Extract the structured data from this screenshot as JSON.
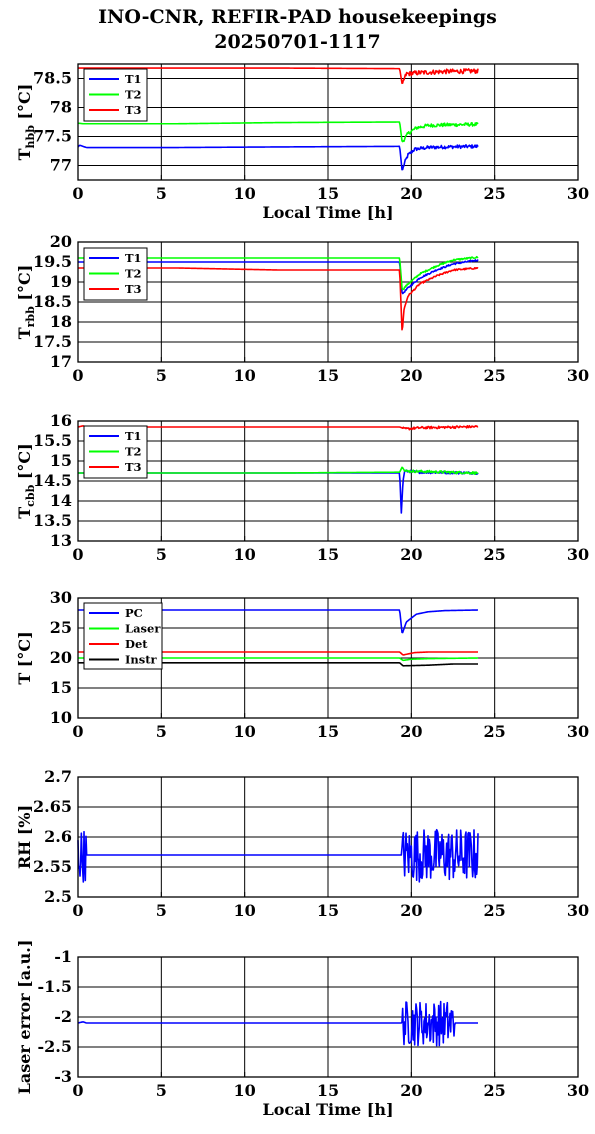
{
  "title_line1": "INO-CNR, REFIR-PAD housekeepings",
  "title_line2": "20250701-1117",
  "colors": {
    "blue": "#0000ff",
    "green": "#00ff00",
    "red": "#ff0000",
    "black": "#000000"
  },
  "chart_data": [
    {
      "type": "line",
      "ylabel_main": "T",
      "ylabel_sub": "hbb",
      "ylabel_unit": " [°C]",
      "xlabel": "Local Time [h]",
      "xlim": [
        0,
        30
      ],
      "xticks": [
        0,
        5,
        10,
        15,
        20,
        25,
        30
      ],
      "ylim": [
        76.75,
        78.75
      ],
      "yticks": [
        77,
        77.5,
        78,
        78.5
      ],
      "grid": true,
      "legend": "top-left",
      "series": [
        {
          "name": "T1",
          "color": "#0000ff",
          "points": [
            [
              0,
              77.32
            ],
            [
              0.1,
              77.35
            ],
            [
              0.3,
              77.33
            ],
            [
              0.5,
              77.31
            ],
            [
              6,
              77.31
            ],
            [
              12,
              77.32
            ],
            [
              19.3,
              77.33
            ],
            [
              19.45,
              76.9
            ],
            [
              19.6,
              77.05
            ],
            [
              19.8,
              77.18
            ],
            [
              20.2,
              77.28
            ],
            [
              21,
              77.31
            ],
            [
              22,
              77.32
            ],
            [
              24,
              77.33
            ]
          ],
          "noise": {
            "from": 19.5,
            "to": 24,
            "amp": 0.03
          }
        },
        {
          "name": "T2",
          "color": "#00ff00",
          "points": [
            [
              0,
              77.73
            ],
            [
              0.3,
              77.72
            ],
            [
              6,
              77.72
            ],
            [
              12,
              77.74
            ],
            [
              19.3,
              77.75
            ],
            [
              19.45,
              77.4
            ],
            [
              19.8,
              77.55
            ],
            [
              20.3,
              77.65
            ],
            [
              21,
              77.69
            ],
            [
              22,
              77.7
            ],
            [
              24,
              77.71
            ]
          ],
          "noise": {
            "from": 19.5,
            "to": 24,
            "amp": 0.03
          }
        },
        {
          "name": "T3",
          "color": "#ff0000",
          "points": [
            [
              0,
              78.68
            ],
            [
              6,
              78.68
            ],
            [
              12,
              78.68
            ],
            [
              19.3,
              78.67
            ],
            [
              19.45,
              78.4
            ],
            [
              19.7,
              78.58
            ],
            [
              20.5,
              78.6
            ],
            [
              22,
              78.62
            ],
            [
              24,
              78.63
            ]
          ],
          "noise": {
            "from": 19.5,
            "to": 24,
            "amp": 0.04
          }
        }
      ]
    },
    {
      "type": "line",
      "ylabel_main": "T",
      "ylabel_sub": "rbb",
      "ylabel_unit": " [°C]",
      "xlabel": "",
      "xlim": [
        0,
        30
      ],
      "xticks": [
        0,
        5,
        10,
        15,
        20,
        25,
        30
      ],
      "ylim": [
        17,
        20
      ],
      "yticks": [
        17,
        17.5,
        18,
        18.5,
        19,
        19.5,
        20
      ],
      "grid": true,
      "legend": "top-left",
      "series": [
        {
          "name": "T1",
          "color": "#0000ff",
          "points": [
            [
              0,
              19.5
            ],
            [
              6,
              19.5
            ],
            [
              12,
              19.5
            ],
            [
              19.3,
              19.5
            ],
            [
              19.45,
              18.7
            ],
            [
              19.8,
              18.85
            ],
            [
              20.5,
              19.1
            ],
            [
              21.5,
              19.3
            ],
            [
              22.5,
              19.45
            ],
            [
              24,
              19.55
            ]
          ],
          "noise": {
            "from": 19.5,
            "to": 24,
            "amp": 0.02
          }
        },
        {
          "name": "T2",
          "color": "#00ff00",
          "points": [
            [
              0,
              19.6
            ],
            [
              6,
              19.6
            ],
            [
              12,
              19.6
            ],
            [
              19.3,
              19.6
            ],
            [
              19.45,
              18.8
            ],
            [
              19.8,
              18.95
            ],
            [
              20.5,
              19.2
            ],
            [
              21.5,
              19.4
            ],
            [
              22.5,
              19.55
            ],
            [
              24,
              19.62
            ]
          ],
          "noise": {
            "from": 19.5,
            "to": 24,
            "amp": 0.02
          }
        },
        {
          "name": "T3",
          "color": "#ff0000",
          "points": [
            [
              0,
              19.35
            ],
            [
              6,
              19.35
            ],
            [
              12,
              19.3
            ],
            [
              19.3,
              19.3
            ],
            [
              19.45,
              17.7
            ],
            [
              19.55,
              18.3
            ],
            [
              19.8,
              18.65
            ],
            [
              20.5,
              18.95
            ],
            [
              21.5,
              19.15
            ],
            [
              22.5,
              19.3
            ],
            [
              24,
              19.35
            ]
          ],
          "noise": {
            "from": 19.5,
            "to": 24,
            "amp": 0.02
          }
        }
      ]
    },
    {
      "type": "line",
      "ylabel_main": "T",
      "ylabel_sub": "cbb",
      "ylabel_unit": " [°C]",
      "xlabel": "",
      "xlim": [
        0,
        30
      ],
      "xticks": [
        0,
        5,
        10,
        15,
        20,
        25,
        30
      ],
      "ylim": [
        13,
        16
      ],
      "yticks": [
        13,
        13.5,
        14,
        14.5,
        15,
        15.5,
        16
      ],
      "grid": true,
      "legend": "top-left",
      "series": [
        {
          "name": "T1",
          "color": "#0000ff",
          "points": [
            [
              0,
              14.7
            ],
            [
              6,
              14.7
            ],
            [
              12,
              14.7
            ],
            [
              19.3,
              14.7
            ],
            [
              19.4,
              13.7
            ],
            [
              19.5,
              14.5
            ],
            [
              19.6,
              14.75
            ],
            [
              20.5,
              14.72
            ],
            [
              24,
              14.7
            ]
          ],
          "noise": {
            "from": 19.6,
            "to": 24,
            "amp": 0.03
          }
        },
        {
          "name": "T2",
          "color": "#00ff00",
          "points": [
            [
              0,
              14.7
            ],
            [
              6,
              14.7
            ],
            [
              12,
              14.7
            ],
            [
              19.3,
              14.72
            ],
            [
              19.45,
              14.85
            ],
            [
              19.6,
              14.75
            ],
            [
              24,
              14.7
            ]
          ],
          "noise": {
            "from": 19.6,
            "to": 24,
            "amp": 0.03
          }
        },
        {
          "name": "T3",
          "color": "#ff0000",
          "points": [
            [
              0,
              15.85
            ],
            [
              0.3,
              15.88
            ],
            [
              0.5,
              15.85
            ],
            [
              12,
              15.85
            ],
            [
              19.3,
              15.85
            ],
            [
              19.6,
              15.8
            ],
            [
              20.5,
              15.83
            ],
            [
              24,
              15.86
            ]
          ],
          "noise": {
            "from": 19.5,
            "to": 24,
            "amp": 0.03
          }
        }
      ]
    },
    {
      "type": "line",
      "ylabel_main": "T [°C]",
      "ylabel_sub": "",
      "ylabel_unit": "",
      "xlabel": "",
      "xlim": [
        0,
        30
      ],
      "xticks": [
        0,
        5,
        10,
        15,
        20,
        25,
        30
      ],
      "ylim": [
        10,
        30
      ],
      "yticks": [
        10,
        15,
        20,
        25,
        30
      ],
      "grid": true,
      "legend": "top-left",
      "series": [
        {
          "name": "PC",
          "color": "#0000ff",
          "points": [
            [
              0,
              28
            ],
            [
              6,
              28
            ],
            [
              12,
              28
            ],
            [
              19.3,
              28
            ],
            [
              19.45,
              24
            ],
            [
              19.7,
              26
            ],
            [
              20.3,
              27.3
            ],
            [
              21,
              27.7
            ],
            [
              22,
              27.9
            ],
            [
              24,
              28
            ]
          ],
          "noise": null
        },
        {
          "name": "Laser",
          "color": "#00ff00",
          "points": [
            [
              0,
              20
            ],
            [
              6,
              20
            ],
            [
              12,
              20
            ],
            [
              19.3,
              20
            ],
            [
              19.5,
              19.6
            ],
            [
              20,
              19.8
            ],
            [
              21,
              19.9
            ],
            [
              24,
              20
            ]
          ],
          "noise": null
        },
        {
          "name": "Det",
          "color": "#ff0000",
          "points": [
            [
              0,
              21
            ],
            [
              6,
              21
            ],
            [
              12,
              21
            ],
            [
              19.3,
              21
            ],
            [
              19.5,
              20.5
            ],
            [
              20.2,
              20.9
            ],
            [
              21,
              21
            ],
            [
              24,
              21
            ]
          ],
          "noise": null
        },
        {
          "name": "Instr",
          "color": "#000000",
          "points": [
            [
              0,
              19.2
            ],
            [
              6,
              19.2
            ],
            [
              12,
              19.2
            ],
            [
              19.3,
              19.2
            ],
            [
              19.5,
              18.7
            ],
            [
              21,
              18.8
            ],
            [
              22.5,
              19
            ],
            [
              24,
              19
            ]
          ],
          "noise": null
        }
      ]
    },
    {
      "type": "line",
      "ylabel_main": "RH [%]",
      "ylabel_sub": "",
      "ylabel_unit": "",
      "xlabel": "",
      "xlim": [
        0,
        30
      ],
      "xticks": [
        0,
        5,
        10,
        15,
        20,
        25,
        30
      ],
      "ylim": [
        2.5,
        2.7
      ],
      "yticks": [
        2.5,
        2.55,
        2.6,
        2.65,
        2.7
      ],
      "grid": true,
      "legend": "none",
      "series": [
        {
          "name": "",
          "color": "#0000ff",
          "points": [
            [
              0,
              2.57
            ],
            [
              0.5,
              2.57
            ],
            [
              19.3,
              2.57
            ],
            [
              24,
              2.57
            ]
          ],
          "noise": [
            {
              "from": 0,
              "to": 0.5,
              "amp": 0.045
            },
            {
              "from": 19.4,
              "to": 24,
              "amp": 0.045
            }
          ]
        }
      ]
    },
    {
      "type": "line",
      "ylabel_main": "Laser error [a.u.]",
      "ylabel_sub": "",
      "ylabel_unit": "",
      "xlabel": "Local Time [h]",
      "xlim": [
        0,
        30
      ],
      "xticks": [
        0,
        5,
        10,
        15,
        20,
        25,
        30
      ],
      "ylim": [
        -3,
        -1
      ],
      "yticks": [
        -3,
        -2.5,
        -2,
        -1.5,
        -1
      ],
      "grid": true,
      "legend": "none",
      "series": [
        {
          "name": "",
          "color": "#0000ff",
          "points": [
            [
              0,
              -2.1
            ],
            [
              0.3,
              -2.08
            ],
            [
              0.5,
              -2.1
            ],
            [
              19.3,
              -2.1
            ],
            [
              22.6,
              -2.1
            ],
            [
              24,
              -2.1
            ]
          ],
          "noise": [
            {
              "from": 19.4,
              "to": 22.6,
              "amp": 0.38
            }
          ]
        }
      ]
    }
  ]
}
